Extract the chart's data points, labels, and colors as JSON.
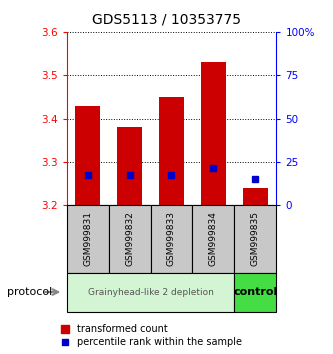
{
  "title": "GDS5113 / 10353775",
  "samples": [
    "GSM999831",
    "GSM999832",
    "GSM999833",
    "GSM999834",
    "GSM999835"
  ],
  "bar_bottoms": [
    3.2,
    3.2,
    3.2,
    3.2,
    3.2
  ],
  "bar_tops": [
    3.43,
    3.38,
    3.45,
    3.53,
    3.24
  ],
  "blue_marker_vals": [
    3.27,
    3.27,
    3.27,
    3.285,
    3.26
  ],
  "ylim": [
    3.2,
    3.6
  ],
  "y2lim": [
    0,
    100
  ],
  "yticks": [
    3.2,
    3.3,
    3.4,
    3.5,
    3.6
  ],
  "y2ticks": [
    0,
    25,
    50,
    75,
    100
  ],
  "y2ticklabels": [
    "0",
    "25",
    "50",
    "75",
    "100%"
  ],
  "bar_color": "#cc0000",
  "blue_color": "#0000cc",
  "group1_label": "Grainyhead-like 2 depletion",
  "group2_label": "control",
  "group1_color": "#d4f5d4",
  "group2_color": "#44dd44",
  "protocol_label": "protocol",
  "legend_red_label": "transformed count",
  "legend_blue_label": "percentile rank within the sample",
  "bar_width": 0.6,
  "figsize": [
    3.33,
    3.54
  ],
  "dpi": 100
}
